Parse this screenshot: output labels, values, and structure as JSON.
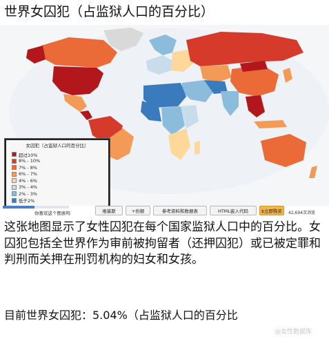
{
  "title": "世界女囚犯（占监狱人口的百分比）",
  "legend": {
    "title": "女囚犯（占监狱人口的百分比）",
    "items": [
      {
        "label": "超过10%",
        "color": "#b2181b"
      },
      {
        "label": "8% - 10%",
        "color": "#d63a2a"
      },
      {
        "label": "7% - 8%",
        "color": "#ea6a38"
      },
      {
        "label": "6% - 7%",
        "color": "#f39b56"
      },
      {
        "label": "4% - 6%",
        "color": "#fdd89a"
      },
      {
        "label": "3% - 4%",
        "color": "#c9dcec"
      },
      {
        "label": "2% - 3%",
        "color": "#8bbcdc"
      },
      {
        "label": "低于2%",
        "color": "#3a7bbd"
      }
    ]
  },
  "map": {
    "ocean_color": "#f4f6f8",
    "nodata_color": "#d9d9d9"
  },
  "toolbar": {
    "like_label": "你喜欢这个图表吗",
    "wikipedia_label": "维基斯",
    "share_count_label": "+份额",
    "data_table_label": "参考资料和数据表",
    "embed_label": "HTML嵌入代码",
    "buy_label": "$立即购买",
    "views_label": "42,694次浏览",
    "progress": 0.48
  },
  "description": "这张地图显示了女性囚犯在每个国家监狱人口中的百分比。女囚犯包括全世界作为审前被拘留者（还押囚犯）或已被定罪和判刑而关押在刑罚机构的妇女和女孩。",
  "stat_line": "目前世界女囚犯：5.04%（占监狱人口的百分比",
  "watermark": "@女性数据库"
}
